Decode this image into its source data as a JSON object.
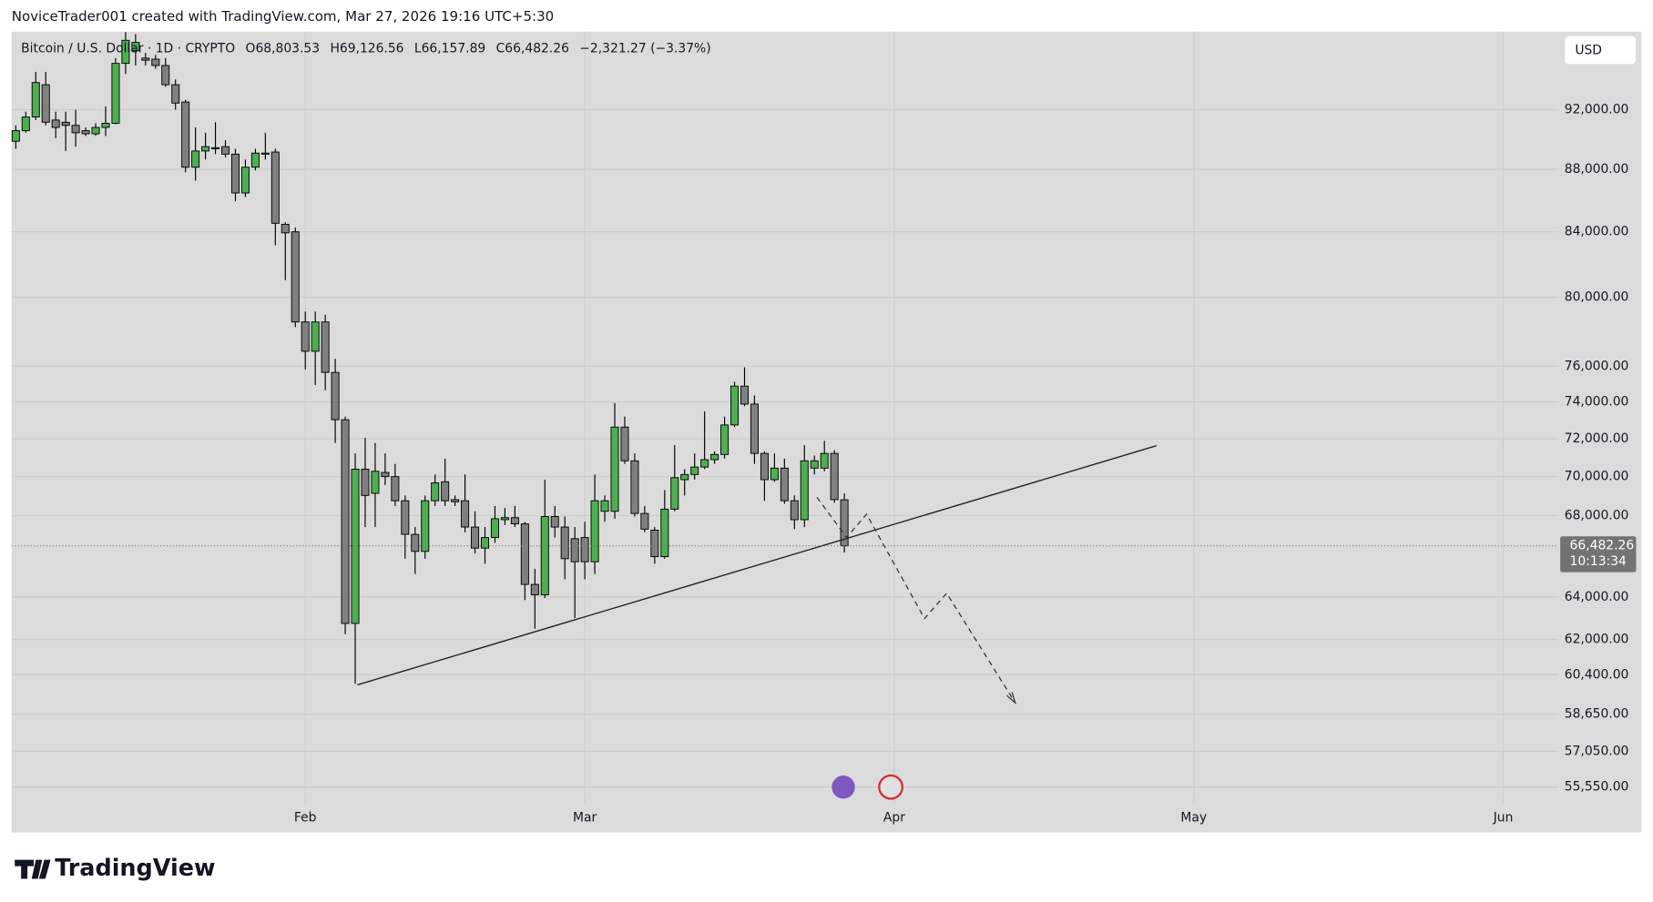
{
  "header": "NoviceTrader001 created with TradingView.com, Mar 27, 2026 19:16 UTC+5:30",
  "brand": "TradingView",
  "currency_button": "USD",
  "chart_data": {
    "type": "candlestick",
    "legend": {
      "symbol": "Bitcoin / U.S. Dollar · 1D · CRYPTO",
      "items": [
        {
          "key": "O",
          "value": "68,803.53"
        },
        {
          "key": "H",
          "value": "69,126.56"
        },
        {
          "key": "L",
          "value": "66,157.89"
        },
        {
          "key": "C",
          "value": "66,482.26"
        }
      ],
      "change": "−2,321.27 (−3.37%)"
    },
    "open": [
      89860,
      90570,
      91500,
      93725,
      91290,
      91140,
      90930,
      90570,
      90360,
      90790,
      91070,
      95225,
      96125,
      95600,
      95525,
      95075,
      93725,
      92525,
      88140,
      89210,
      89430,
      89500,
      89000,
      86465,
      88140,
      89000,
      89140,
      84470,
      84000,
      78545,
      76850,
      78545,
      75650,
      73030,
      62750,
      70390,
      69135,
      70220,
      70000,
      68755,
      67055,
      66210,
      68755,
      69730,
      68810,
      68755,
      67420,
      66370,
      66895,
      67790,
      67895,
      67580,
      64600,
      64100,
      67950,
      67420,
      66840,
      66895,
      65700,
      68215,
      68215,
      72630,
      70830,
      68105,
      67265,
      65950,
      68325,
      69840,
      70110,
      70500,
      70890,
      71165,
      72745,
      74880,
      73885,
      71220,
      69840,
      70445,
      68755,
      67790,
      70445,
      70445,
      71220,
      68803.53
    ],
    "high": [
      90930,
      91860,
      94625,
      94625,
      91860,
      91860,
      92000,
      90790,
      91070,
      92225,
      95600,
      97475,
      97325,
      95975,
      95825,
      95600,
      94100,
      92675,
      90790,
      90430,
      91140,
      89930,
      89360,
      88640,
      89360,
      90430,
      89360,
      84600,
      84270,
      79150,
      79150,
      78970,
      76425,
      73200,
      71220,
      72055,
      71780,
      71220,
      70665,
      69025,
      67420,
      69025,
      70110,
      70945,
      69025,
      70110,
      68215,
      67420,
      68485,
      68380,
      68485,
      67685,
      65350,
      69840,
      68485,
      67950,
      67420,
      67685,
      70110,
      69025,
      73945,
      73200,
      71220,
      68485,
      67420,
      69300,
      71665,
      70390,
      71220,
      73485,
      71330,
      73200,
      75120,
      75940,
      74355,
      71330,
      71220,
      70945,
      69025,
      71665,
      71110,
      71890,
      71390,
      69126.56
    ],
    "low": [
      89360,
      90430,
      91290,
      90930,
      90070,
      89210,
      89500,
      90215,
      90215,
      90215,
      91000,
      94475,
      95075,
      95075,
      94850,
      93575,
      92000,
      87800,
      87265,
      88640,
      89000,
      88790,
      85930,
      86200,
      87930,
      88640,
      83160,
      81035,
      78245,
      75825,
      74940,
      74650,
      71780,
      62250,
      60000,
      67420,
      67420,
      69565,
      68485,
      65850,
      65100,
      65850,
      68485,
      68485,
      68485,
      67160,
      66105,
      65600,
      66630,
      67525,
      67420,
      63850,
      62500,
      63950,
      66895,
      64850,
      63000,
      64850,
      65100,
      67685,
      67840,
      70665,
      67950,
      67160,
      65600,
      65850,
      68215,
      69025,
      69840,
      70390,
      70665,
      70945,
      72630,
      73770,
      70665,
      68755,
      69730,
      68595,
      67315,
      67420,
      70110,
      70280,
      68650,
      66157.89
    ],
    "close": [
      90570,
      91500,
      93875,
      91140,
      90790,
      90930,
      90430,
      90360,
      90790,
      91070,
      95225,
      96875,
      96725,
      95450,
      95075,
      93725,
      92450,
      88140,
      89210,
      89500,
      89360,
      89000,
      86465,
      88140,
      89070,
      89070,
      84535,
      83935,
      78545,
      76850,
      78545,
      75650,
      73030,
      62750,
      70390,
      69025,
      70280,
      70000,
      68755,
      67055,
      66210,
      68755,
      69675,
      68755,
      68700,
      67420,
      66370,
      66895,
      67840,
      67895,
      67580,
      64600,
      64100,
      67950,
      67420,
      65850,
      65700,
      65700,
      68755,
      68755,
      72630,
      70830,
      68105,
      67315,
      65950,
      68325,
      69945,
      70110,
      70500,
      70890,
      71165,
      72745,
      74880,
      73885,
      71220,
      69840,
      70445,
      68755,
      67790,
      70830,
      70830,
      71220,
      68810,
      66482.26
    ],
    "up_color": "#4caf50",
    "down_color": "#808080",
    "xlim": [
      -0.42,
      154.5
    ],
    "xticks": [
      {
        "value": 29,
        "label": "Feb"
      },
      {
        "value": 57,
        "label": "Mar"
      },
      {
        "value": 88,
        "label": "Apr"
      },
      {
        "value": 118,
        "label": "May"
      },
      {
        "value": 149,
        "label": "Jun"
      }
    ],
    "ylim": [
      54900,
      97500
    ],
    "log_scale": true,
    "grid": true,
    "yticks": [
      {
        "value": 92000,
        "label": "92,000.00"
      },
      {
        "value": 88000,
        "label": "88,000.00"
      },
      {
        "value": 84000,
        "label": "84,000.00"
      },
      {
        "value": 80000,
        "label": "80,000.00"
      },
      {
        "value": 76000,
        "label": "76,000.00"
      },
      {
        "value": 74000,
        "label": "74,000.00"
      },
      {
        "value": 72000,
        "label": "72,000.00"
      },
      {
        "value": 70000,
        "label": "70,000.00"
      },
      {
        "value": 68000,
        "label": "68,000.00"
      },
      {
        "value": 64000,
        "label": "64,000.00"
      },
      {
        "value": 62000,
        "label": "62,000.00"
      },
      {
        "value": 60400,
        "label": "60,400.00"
      },
      {
        "value": 58650,
        "label": "58,650.00"
      },
      {
        "value": 57050,
        "label": "57,050.00"
      },
      {
        "value": 55550,
        "label": "55,550.00"
      }
    ],
    "last_price": {
      "value": 66482.26,
      "label": "66,482.26"
    },
    "countdown": "10:13:34"
  }
}
